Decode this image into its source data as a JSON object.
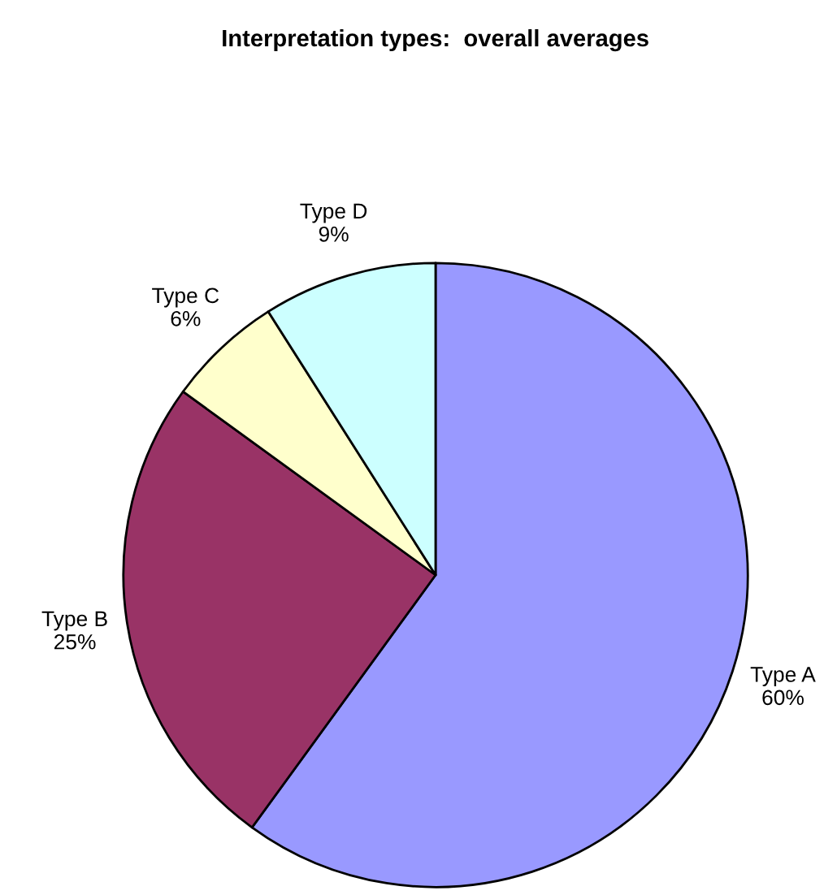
{
  "chart_data": {
    "type": "pie",
    "title": "Interpretation types:  overall averages",
    "categories": [
      "Type A",
      "Type B",
      "Type C",
      "Type D"
    ],
    "values": [
      60,
      25,
      6,
      9
    ],
    "value_labels": [
      "60%",
      "25%",
      "6%",
      "9%"
    ],
    "colors": [
      "#9999ff",
      "#993366",
      "#ffffcc",
      "#ccffff"
    ],
    "legend": false
  }
}
